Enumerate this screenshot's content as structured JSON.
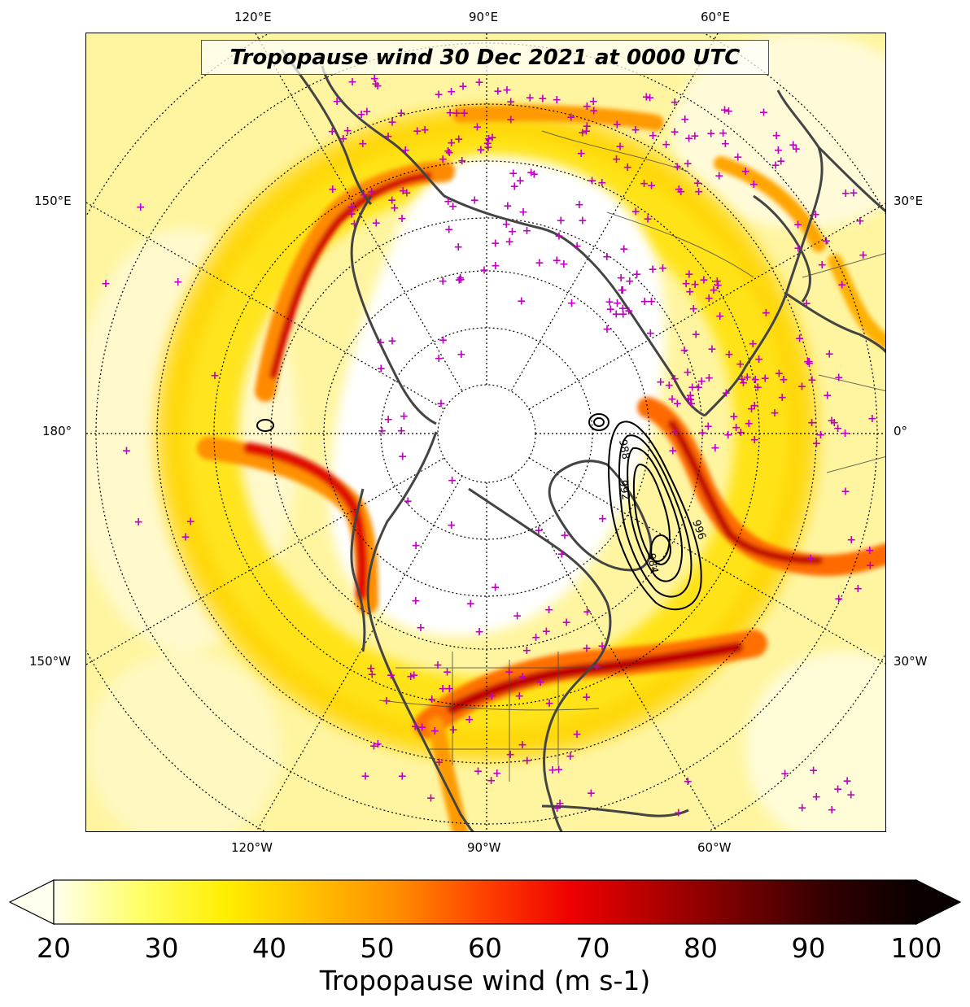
{
  "title": "Tropopause wind 30 Dec 2021 at 0000 UTC",
  "longitude_labels": {
    "top": [
      "120°E",
      "90°E",
      "60°E"
    ],
    "left": [
      "150°E",
      "180°",
      "150°W"
    ],
    "right": [
      "30°E",
      "0°",
      "30°W"
    ],
    "bottom": [
      "120°W",
      "90°W",
      "60°W"
    ]
  },
  "contour_labels": [
    "984",
    "988",
    "992",
    "996"
  ],
  "colorbar": {
    "label": "Tropopause wind (m s-1)",
    "ticks": [
      "20",
      "30",
      "40",
      "50",
      "60",
      "70",
      "80",
      "90",
      "100"
    ],
    "range": [
      20,
      100
    ],
    "extend": "both",
    "colormap": "hot_r",
    "stops": [
      "#fffff0",
      "#ffff66",
      "#ffee00",
      "#ffc000",
      "#ff8c00",
      "#ff4000",
      "#ee0000",
      "#b00000",
      "#700000",
      "#300000",
      "#0a0000"
    ]
  },
  "overlay": {
    "observation_marker_color": "#c000c0",
    "observation_marker_symbol": "+",
    "coastline_color": "#444444",
    "contour_color": "#000000"
  }
}
